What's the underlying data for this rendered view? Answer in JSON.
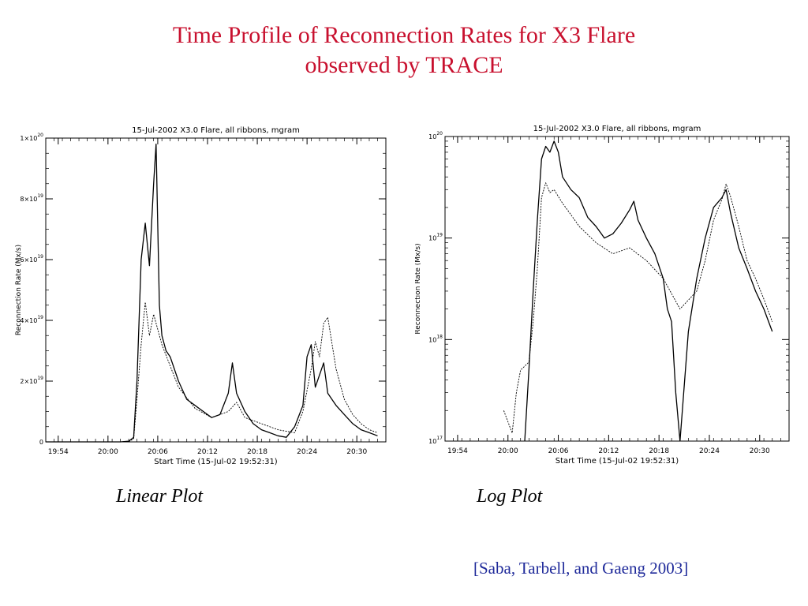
{
  "slide": {
    "title_line1": "Time Profile of Reconnection Rates for X3 Flare",
    "title_line2": "observed by TRACE",
    "linear_caption": "Linear Plot",
    "log_caption": "Log Plot",
    "citation": "[Saba, Tarbell, and Gaeng 2003]",
    "title_color": "#c8102e",
    "citation_color": "#1f2a9a"
  },
  "chart_data": [
    {
      "type": "line",
      "scale": "linear",
      "title": "15-Jul-2002 X3.0 Flare, all ribbons, mgram",
      "xlabel": "Start Time (15-Jul-02 19:52:31)",
      "ylabel": "Reconnection Rate (Mx/s)",
      "x_unit": "minutes after 19:52:31",
      "xlim": [
        0,
        41
      ],
      "ylim": [
        0,
        1e+20
      ],
      "x_ticks": [
        {
          "label": "19:54",
          "x": 1.5
        },
        {
          "label": "20:00",
          "x": 7.5
        },
        {
          "label": "20:06",
          "x": 13.5
        },
        {
          "label": "20:12",
          "x": 19.5
        },
        {
          "label": "20:18",
          "x": 25.5
        },
        {
          "label": "20:24",
          "x": 31.5
        },
        {
          "label": "20:30",
          "x": 37.5
        }
      ],
      "y_ticks": [
        {
          "mant": "0",
          "exp": "",
          "v": 0
        },
        {
          "mant": "2×10",
          "exp": "19",
          "v": 2e+19
        },
        {
          "mant": "4×10",
          "exp": "19",
          "v": 4e+19
        },
        {
          "mant": "6×10",
          "exp": "19",
          "v": 6e+19
        },
        {
          "mant": "8×10",
          "exp": "19",
          "v": 8e+19
        },
        {
          "mant": "1×10",
          "exp": "20",
          "v": 1e+20
        }
      ],
      "series": [
        {
          "style": "solid",
          "x": [
            0,
            5,
            9,
            10,
            10.6,
            11,
            11.5,
            12,
            12.5,
            13,
            13.3,
            13.7,
            14,
            14.5,
            15,
            16,
            17,
            18,
            19,
            20,
            21,
            22,
            22.5,
            23,
            24,
            25,
            26,
            27,
            28,
            29,
            30,
            31,
            31.5,
            32,
            32.5,
            33,
            33.5,
            34,
            35,
            36,
            37,
            38,
            39,
            40
          ],
          "y": [
            0,
            0,
            0,
            2e+17,
            1.5e+18,
            2e+19,
            6e+19,
            7.2e+19,
            5.8e+19,
            8.5e+19,
            9.8e+19,
            4.5e+19,
            3.5e+19,
            3e+19,
            2.8e+19,
            2e+19,
            1.4e+19,
            1.2e+19,
            1e+19,
            8e+18,
            9e+18,
            1.6e+19,
            2.6e+19,
            1.6e+19,
            1e+19,
            6e+18,
            4e+18,
            3e+18,
            2e+18,
            1.5e+18,
            5e+18,
            1.2e+19,
            2.8e+19,
            3.2e+19,
            1.8e+19,
            2.2e+19,
            2.6e+19,
            1.6e+19,
            1.2e+19,
            9e+18,
            6e+18,
            4e+18,
            3e+18,
            2e+18
          ]
        },
        {
          "style": "dashed",
          "x": [
            0,
            9,
            10,
            10.6,
            11,
            11.5,
            12,
            12.5,
            13,
            14,
            15,
            16,
            18,
            20,
            22,
            23,
            24,
            26,
            28,
            30,
            31,
            32,
            32.5,
            33,
            33.5,
            34,
            35,
            36,
            37,
            38,
            39,
            40
          ],
          "y": [
            0,
            0,
            1e+17,
            1e+18,
            1.4e+19,
            3.2e+19,
            4.6e+19,
            3.5e+19,
            4.2e+19,
            3.2e+19,
            2.5e+19,
            1.8e+19,
            1.1e+19,
            8e+18,
            1e+19,
            1.3e+19,
            8e+18,
            6e+18,
            4e+18,
            3e+18,
            1e+19,
            2.4e+19,
            3.3e+19,
            2.8e+19,
            3.9e+19,
            4.1e+19,
            2.4e+19,
            1.4e+19,
            9e+18,
            6e+18,
            4e+18,
            3e+18
          ]
        }
      ]
    },
    {
      "type": "line",
      "scale": "log",
      "title": "15-Jul-2002 X3.0 Flare, all ribbons, mgram",
      "xlabel": "Start Time (15-Jul-02 19:52:31)",
      "ylabel": "Reconnection Rate (Mx/s)",
      "x_unit": "minutes after 19:52:31",
      "xlim": [
        0,
        41
      ],
      "ylim": [
        1e+17,
        1e+20
      ],
      "x_ticks": [
        {
          "label": "19:54",
          "x": 1.5
        },
        {
          "label": "20:00",
          "x": 7.5
        },
        {
          "label": "20:06",
          "x": 13.5
        },
        {
          "label": "20:12",
          "x": 19.5
        },
        {
          "label": "20:18",
          "x": 25.5
        },
        {
          "label": "20:24",
          "x": 31.5
        },
        {
          "label": "20:30",
          "x": 37.5
        }
      ],
      "y_ticks": [
        {
          "mant": "10",
          "exp": "17",
          "v": 1e+17
        },
        {
          "mant": "10",
          "exp": "18",
          "v": 1e+18
        },
        {
          "mant": "10",
          "exp": "19",
          "v": 1e+19
        },
        {
          "mant": "10",
          "exp": "20",
          "v": 1e+20
        }
      ],
      "series": [
        {
          "style": "solid",
          "x": [
            9.5,
            10,
            10.5,
            11,
            11.5,
            12,
            12.5,
            13,
            13.5,
            14,
            15,
            16,
            17,
            18,
            19,
            20,
            21,
            22,
            22.5,
            23,
            24,
            25,
            26,
            26.5,
            27,
            27.5,
            28,
            29,
            30,
            31,
            32,
            33,
            33.5,
            34,
            35,
            36,
            37,
            38,
            39
          ],
          "y": [
            1e+17,
            5e+17,
            3e+18,
            1.5e+19,
            6e+19,
            8e+19,
            7e+19,
            9e+19,
            7e+19,
            4e+19,
            3e+19,
            2.5e+19,
            1.6e+19,
            1.3e+19,
            1e+19,
            1.1e+19,
            1.4e+19,
            1.9e+19,
            2.3e+19,
            1.5e+19,
            1e+19,
            7e+18,
            4e+18,
            2e+18,
            1.5e+18,
            3e+17,
            1e+17,
            1.2e+18,
            4e+18,
            1e+19,
            2e+19,
            2.5e+19,
            3e+19,
            1.8e+19,
            8e+18,
            5e+18,
            3e+18,
            2e+18,
            1.2e+18
          ]
        },
        {
          "style": "dashed",
          "x": [
            7,
            8,
            8.5,
            9,
            10,
            10.5,
            11,
            11.5,
            12,
            12.5,
            13,
            14,
            15,
            16,
            18,
            20,
            22,
            24,
            26,
            28,
            30,
            31,
            32,
            33,
            33.5,
            34,
            35,
            36,
            37,
            38,
            39
          ],
          "y": [
            2e+17,
            1.2e+17,
            3e+17,
            5e+17,
            6e+17,
            1.5e+18,
            5e+18,
            2.5e+19,
            3.5e+19,
            2.8e+19,
            3e+19,
            2.2e+19,
            1.7e+19,
            1.3e+19,
            9e+18,
            7e+18,
            8e+18,
            6e+18,
            4e+18,
            2e+18,
            3e+18,
            6e+18,
            1.5e+19,
            2.4e+19,
            3.4e+19,
            2.6e+19,
            1.3e+19,
            6e+18,
            4e+18,
            2.5e+18,
            1.5e+18
          ]
        }
      ]
    }
  ]
}
